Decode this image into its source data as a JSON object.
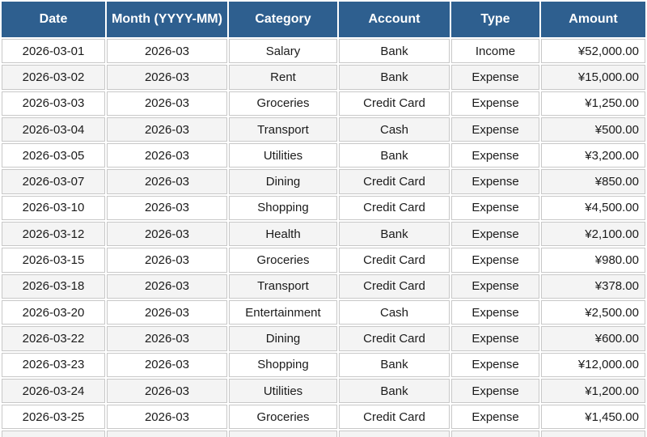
{
  "table": {
    "columns": [
      {
        "key": "date",
        "label": "Date",
        "align": "center"
      },
      {
        "key": "month",
        "label": "Month (YYYY-MM)",
        "align": "center"
      },
      {
        "key": "category",
        "label": "Category",
        "align": "center"
      },
      {
        "key": "account",
        "label": "Account",
        "align": "center"
      },
      {
        "key": "type",
        "label": "Type",
        "align": "center"
      },
      {
        "key": "amount",
        "label": "Amount",
        "align": "right"
      }
    ],
    "rows": [
      [
        "2026-03-01",
        "2026-03",
        "Salary",
        "Bank",
        "Income",
        "¥52,000.00"
      ],
      [
        "2026-03-02",
        "2026-03",
        "Rent",
        "Bank",
        "Expense",
        "¥15,000.00"
      ],
      [
        "2026-03-03",
        "2026-03",
        "Groceries",
        "Credit Card",
        "Expense",
        "¥1,250.00"
      ],
      [
        "2026-03-04",
        "2026-03",
        "Transport",
        "Cash",
        "Expense",
        "¥500.00"
      ],
      [
        "2026-03-05",
        "2026-03",
        "Utilities",
        "Bank",
        "Expense",
        "¥3,200.00"
      ],
      [
        "2026-03-07",
        "2026-03",
        "Dining",
        "Credit Card",
        "Expense",
        "¥850.00"
      ],
      [
        "2026-03-10",
        "2026-03",
        "Shopping",
        "Credit Card",
        "Expense",
        "¥4,500.00"
      ],
      [
        "2026-03-12",
        "2026-03",
        "Health",
        "Bank",
        "Expense",
        "¥2,100.00"
      ],
      [
        "2026-03-15",
        "2026-03",
        "Groceries",
        "Credit Card",
        "Expense",
        "¥980.00"
      ],
      [
        "2026-03-18",
        "2026-03",
        "Transport",
        "Credit Card",
        "Expense",
        "¥378.00"
      ],
      [
        "2026-03-20",
        "2026-03",
        "Entertainment",
        "Cash",
        "Expense",
        "¥2,500.00"
      ],
      [
        "2026-03-22",
        "2026-03",
        "Dining",
        "Credit Card",
        "Expense",
        "¥600.00"
      ],
      [
        "2026-03-23",
        "2026-03",
        "Shopping",
        "Bank",
        "Expense",
        "¥12,000.00"
      ],
      [
        "2026-03-24",
        "2026-03",
        "Utilities",
        "Bank",
        "Expense",
        "¥1,200.00"
      ],
      [
        "2026-03-25",
        "2026-03",
        "Groceries",
        "Credit Card",
        "Expense",
        "¥1,450.00"
      ]
    ],
    "partial_bottom_row_visible": true
  },
  "colors": {
    "header_bg": "#2e5f8f",
    "header_text": "#ffffff",
    "row_bg": "#ffffff",
    "row_alt_bg": "#f4f4f4",
    "cell_border": "#c8c8c8",
    "cell_text": "#1b1b1b"
  }
}
